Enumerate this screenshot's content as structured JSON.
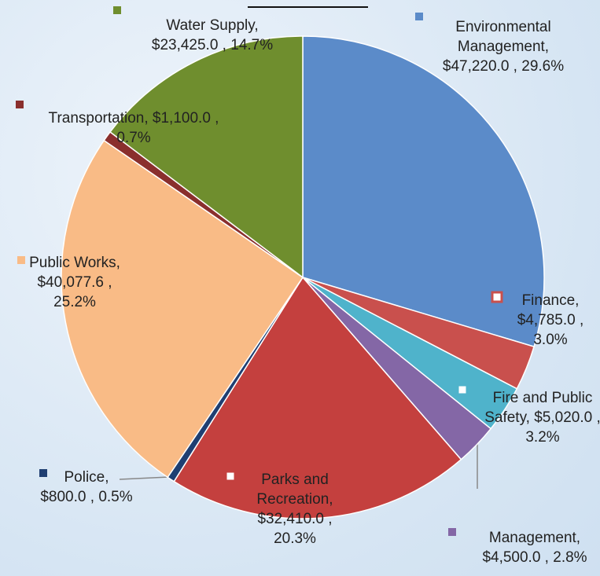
{
  "chart_data": {
    "type": "pie",
    "categories": [
      "Environmental Management,",
      "Finance,",
      "Fire and Public Safety,",
      "Management,",
      "Parks and Recreation,",
      "Police,",
      "Public Works,",
      "Transportation,",
      "Water Supply,"
    ],
    "values": [
      47220.0,
      4785.0,
      5020.0,
      4500.0,
      32410.0,
      800.0,
      40077.6,
      1100.0,
      23425.0
    ],
    "value_labels": [
      "$47,220.0 ,",
      "$4,785.0 ,",
      "$5,020.0 ,",
      "$4,500.0 ,",
      "$32,410.0 ,",
      "$800.0 ,",
      "$40,077.6 ,",
      "$1,100.0 ,",
      "$23,425.0 ,"
    ],
    "percent_labels": [
      "29.6%",
      "3.0%",
      "3.2%",
      "2.8%",
      "20.3%",
      "0.5%",
      "25.2%",
      "0.7%",
      "14.7%"
    ],
    "colors": [
      "#5b8bc9",
      "#c9504d",
      "#4fb3cb",
      "#8467a6",
      "#c4403e",
      "#1f3f72",
      "#f9bb86",
      "#8a2f2d",
      "#6f8e2e"
    ]
  }
}
